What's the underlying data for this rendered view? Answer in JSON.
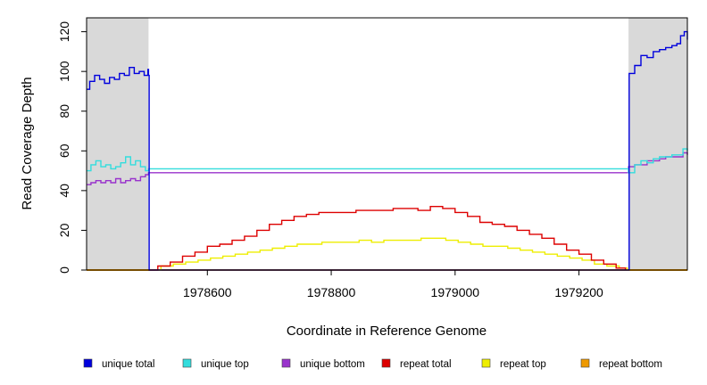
{
  "chart_data": {
    "type": "line",
    "title": "",
    "xlabel": "Coordinate in Reference Genome",
    "ylabel": "Read Coverage Depth",
    "xlim": [
      1978405,
      1979375
    ],
    "ylim": [
      0,
      127
    ],
    "xticks": [
      1978600,
      1978800,
      1979000,
      1979200
    ],
    "xtick_labels": [
      "1978600",
      "1978800",
      "1979000",
      "1979200"
    ],
    "yticks": [
      0,
      20,
      40,
      60,
      80,
      100,
      120
    ],
    "ytick_labels": [
      "0",
      "20",
      "40",
      "60",
      "80",
      "100",
      "120"
    ],
    "grid": false,
    "legend_position": "bottom",
    "shaded_regions": [
      {
        "x": [
          1978405,
          1978505
        ],
        "color": "#d9d9d9"
      },
      {
        "x": [
          1979280,
          1979375
        ],
        "color": "#d9d9d9"
      }
    ],
    "series": [
      {
        "name": "unique total",
        "color": "#0000dd",
        "x": [
          1978405,
          1978410,
          1978418,
          1978426,
          1978434,
          1978442,
          1978450,
          1978458,
          1978466,
          1978474,
          1978482,
          1978490,
          1978498,
          1978504,
          1978505,
          1978506,
          1979279,
          1979280,
          1979281,
          1979290,
          1979300,
          1979310,
          1979320,
          1979330,
          1979340,
          1979350,
          1979358,
          1979364,
          1979370,
          1979375
        ],
        "y": [
          91,
          95,
          98,
          96,
          94,
          97,
          96,
          99,
          98,
          102,
          99,
          100,
          98,
          101,
          98,
          0,
          0,
          0,
          99,
          103,
          108,
          107,
          110,
          111,
          112,
          113,
          114,
          118,
          120,
          116
        ]
      },
      {
        "name": "unique top",
        "color": "#33dddd",
        "x": [
          1978405,
          1978412,
          1978420,
          1978428,
          1978436,
          1978444,
          1978452,
          1978460,
          1978468,
          1978476,
          1978484,
          1978492,
          1978500,
          1978505,
          1979280,
          1979290,
          1979300,
          1979310,
          1979320,
          1979330,
          1979340,
          1979350,
          1979360,
          1979368,
          1979375
        ],
        "y": [
          50,
          53,
          55,
          52,
          53,
          51,
          52,
          54,
          57,
          53,
          55,
          52,
          50,
          51,
          49,
          53,
          55,
          54,
          56,
          57,
          57,
          58,
          58,
          61,
          60
        ]
      },
      {
        "name": "unique bottom",
        "color": "#9933cc",
        "x": [
          1978405,
          1978412,
          1978420,
          1978428,
          1978436,
          1978444,
          1978452,
          1978460,
          1978468,
          1978476,
          1978484,
          1978492,
          1978500,
          1978505,
          1979280,
          1979290,
          1979300,
          1979310,
          1979320,
          1979330,
          1979340,
          1979350,
          1979360,
          1979368,
          1979375
        ],
        "y": [
          43,
          44,
          45,
          44,
          45,
          44,
          46,
          44,
          45,
          46,
          45,
          47,
          48,
          49,
          52,
          53,
          53,
          55,
          55,
          56,
          57,
          57,
          57,
          59,
          58
        ]
      },
      {
        "name": "repeat total",
        "color": "#dd0000",
        "x": [
          1978505,
          1978520,
          1978540,
          1978560,
          1978580,
          1978600,
          1978620,
          1978640,
          1978660,
          1978680,
          1978700,
          1978720,
          1978740,
          1978760,
          1978780,
          1978800,
          1978820,
          1978840,
          1978860,
          1978880,
          1978900,
          1978920,
          1978940,
          1978960,
          1978980,
          1979000,
          1979020,
          1979040,
          1979060,
          1979080,
          1979100,
          1979120,
          1979140,
          1979160,
          1979180,
          1979200,
          1979220,
          1979240,
          1979260,
          1979275
        ],
        "y": [
          0,
          2,
          4,
          7,
          9,
          12,
          13,
          15,
          17,
          20,
          23,
          25,
          27,
          28,
          29,
          29,
          29,
          30,
          30,
          30,
          31,
          31,
          30,
          32,
          31,
          29,
          27,
          24,
          23,
          22,
          20,
          18,
          16,
          13,
          10,
          8,
          5,
          3,
          1,
          0
        ]
      },
      {
        "name": "repeat top",
        "color": "#eeee00",
        "x": [
          1978505,
          1978525,
          1978545,
          1978565,
          1978585,
          1978605,
          1978625,
          1978645,
          1978665,
          1978685,
          1978705,
          1978725,
          1978745,
          1978765,
          1978785,
          1978805,
          1978825,
          1978845,
          1978865,
          1978885,
          1978905,
          1978925,
          1978945,
          1978965,
          1978985,
          1979005,
          1979025,
          1979045,
          1979065,
          1979085,
          1979105,
          1979125,
          1979145,
          1979165,
          1979185,
          1979205,
          1979225,
          1979245,
          1979265,
          1979278
        ],
        "y": [
          0,
          2,
          3,
          4,
          5,
          6,
          7,
          8,
          9,
          10,
          11,
          12,
          13,
          13,
          14,
          14,
          14,
          15,
          14,
          15,
          15,
          15,
          16,
          16,
          15,
          14,
          13,
          12,
          12,
          11,
          10,
          9,
          8,
          7,
          6,
          5,
          3,
          2,
          1,
          0
        ]
      },
      {
        "name": "repeat bottom",
        "color": "#ee9900",
        "x": [
          1978405,
          1979375
        ],
        "y": [
          0,
          0
        ]
      }
    ]
  }
}
